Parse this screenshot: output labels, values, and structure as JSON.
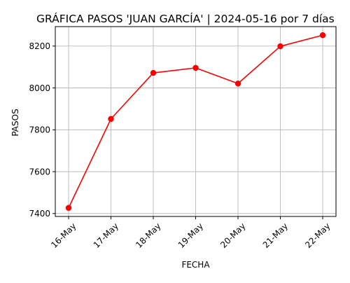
{
  "chart_data": {
    "type": "line",
    "title": "GRÁFICA PASOS 'JUAN GARCÍA' | 2024-05-16 por 7 días",
    "xlabel": "FECHA",
    "ylabel": "PASOS",
    "categories": [
      "16-May",
      "17-May",
      "18-May",
      "19-May",
      "20-May",
      "21-May",
      "22-May"
    ],
    "series": [
      {
        "values": [
          7427,
          7852,
          8072,
          8096,
          8021,
          8199,
          8252
        ],
        "color": "#ff0000",
        "marker": "circle"
      }
    ],
    "ylim": [
      7386,
      8293
    ],
    "yticks": [
      7400,
      7600,
      7800,
      8000,
      8200
    ],
    "xtick_rotation_deg": 45,
    "grid": true,
    "legend": false
  }
}
